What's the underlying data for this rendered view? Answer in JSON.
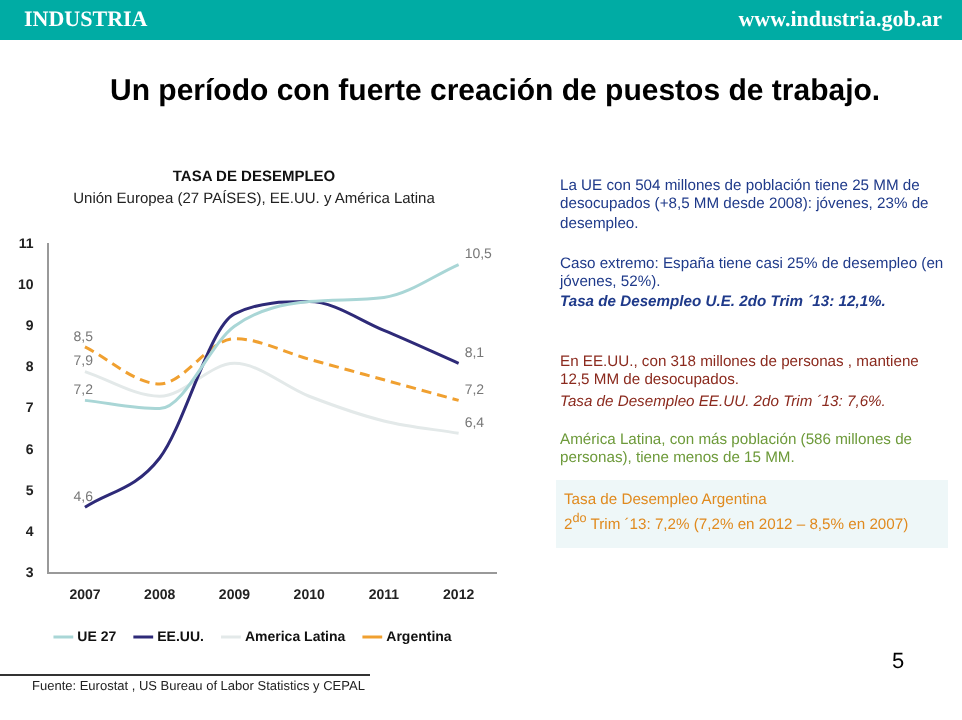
{
  "chart_data": {
    "type": "line",
    "title": "TASA DE DESEMPLEO",
    "subtitle": "Unión Europea (27 PAÍSES), EE.UU. y América Latina",
    "categories": [
      "2007",
      "2008",
      "2009",
      "2010",
      "2011",
      "2012"
    ],
    "series": [
      {
        "name": "UE 27",
        "color": "#a9d6d6",
        "values": [
          7.2,
          7.0,
          9.0,
          9.6,
          9.7,
          10.5
        ],
        "value_labels": [
          "7,2",
          null,
          null,
          null,
          null,
          "10,5"
        ]
      },
      {
        "name": "EE.UU.",
        "color": "#2e2a78",
        "values": [
          4.6,
          5.8,
          9.3,
          9.6,
          8.9,
          8.1
        ],
        "value_labels": [
          "4,6",
          null,
          null,
          null,
          null,
          "8,1"
        ]
      },
      {
        "name": "America Latina",
        "color": "#e3e9e9",
        "values": [
          7.9,
          7.3,
          8.1,
          7.3,
          6.7,
          6.4
        ],
        "value_labels": [
          "7,9",
          null,
          null,
          null,
          null,
          "6,4"
        ]
      },
      {
        "name": "Argentina",
        "color": "#f0a030",
        "line_style": "dashed",
        "values": [
          8.5,
          7.6,
          8.7,
          8.2,
          7.7,
          7.2
        ],
        "value_labels": [
          "8,5",
          null,
          null,
          null,
          null,
          "7,2"
        ]
      }
    ],
    "ylim": [
      3,
      11
    ],
    "yticks": [
      3,
      4,
      5,
      6,
      7,
      8,
      9,
      10,
      11
    ],
    "grid": false,
    "legend": "bottom",
    "marker": "none",
    "line_style": "solid",
    "annotations": [
      "INDUSTRIA",
      "www.industria.gob.ar",
      "Un período con fuerte creación de puestos de trabajo.",
      "La UE con 504 millones de población tiene 25 MM de desocupados (+8,5 MM desde 2008): jóvenes, 23% de desempleo.",
      "Caso extremo: España tiene casi 25% de desempleo (en jóvenes, 52%).",
      "Tasa de Desempleo U.E. 2do Trim ´13: 12,1%.",
      "En EE.UU., con 318 millones de personas , mantiene 12,5 MM de desocupados.",
      "Tasa de Desempleo EE.UU. 2do Trim ´13: 7,6%.",
      "América Latina, con más población (586 millones de personas), tiene menos de 15 MM.",
      "Tasa de Desempleo Argentina",
      "2$^{do}$ Trim ´13: 7,2% (7,2% en 2012 – 8,5% en 2007)",
      "Fuente: Eurostat , US Bureau of Labor Statistics y CEPAL",
      "5"
    ]
  }
}
